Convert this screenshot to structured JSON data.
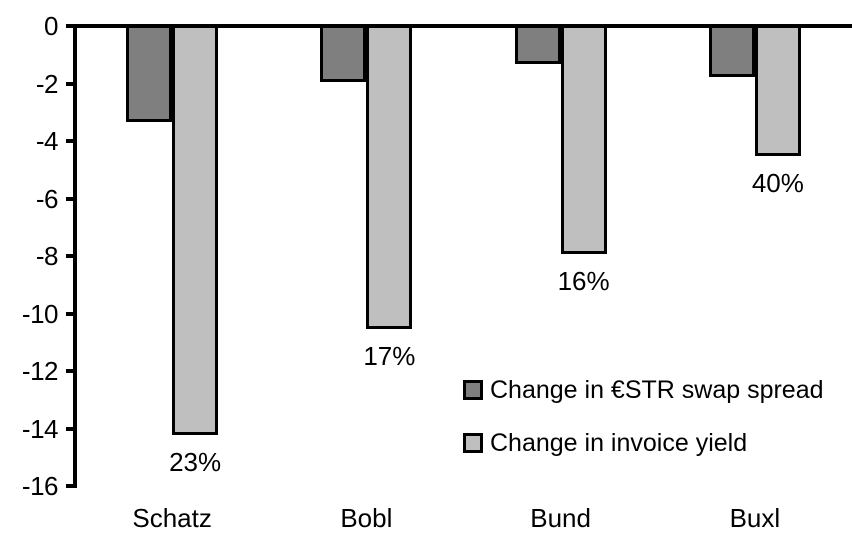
{
  "chart_data": {
    "type": "bar",
    "categories": [
      "Schatz",
      "Bobl",
      "Bund",
      "Buxl"
    ],
    "series": [
      {
        "name": "Change in €STR swap spread",
        "color": "#7F7F7F",
        "border_color": "#000000",
        "values": [
          -3.3,
          -1.9,
          -1.3,
          -1.75
        ]
      },
      {
        "name": "Change in invoice yield",
        "color": "#BFBFBF",
        "border_color": "#000000",
        "values": [
          -14.2,
          -10.5,
          -7.9,
          -4.5
        ],
        "point_labels": [
          "23%",
          "17%",
          "16%",
          "40%"
        ]
      }
    ],
    "ylim": [
      -16,
      0
    ],
    "yticks": [
      0,
      -2,
      -4,
      -6,
      -8,
      -10,
      -12,
      -14,
      -16
    ],
    "grid": false,
    "legend_position": "inside-lower-right",
    "background_color": "#FFFFFF",
    "axis_color": "#000000",
    "text_color": "#000000"
  }
}
